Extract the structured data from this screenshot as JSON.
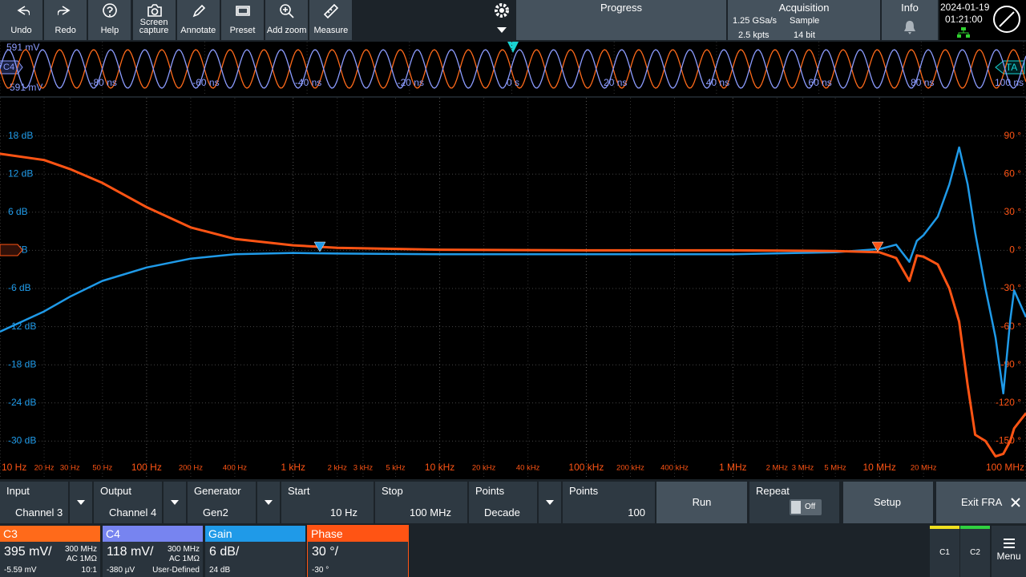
{
  "toolbar": [
    "Undo",
    "Redo",
    "Help",
    "Screen capture",
    "Annotate",
    "Preset",
    "Add zoom",
    "Measure"
  ],
  "status": {
    "progress": "Progress",
    "acquisition": "Acquisition",
    "sample_rate": "1.25 GSa/s",
    "mode": "Sample",
    "record": "2.5 kpts",
    "resolution": "14 bit",
    "info": "Info",
    "date": "2024-01-19",
    "time": "01:21:00"
  },
  "overview": {
    "top_label": "591 mV",
    "bottom_label": "-591 mV",
    "channel": "C4",
    "trigger": "TA",
    "time_labels": [
      "-80 ns",
      "-60 ns",
      "-40 ns",
      "-20 ns",
      "0 s",
      "20 ns",
      "40 ns",
      "60 ns",
      "80 ns",
      "100 ns"
    ]
  },
  "chart_data": {
    "type": "line",
    "x_scale": "log",
    "grid": true,
    "xlim": [
      10,
      100000000
    ],
    "xticks": [
      {
        "value": 10,
        "label": "10 Hz"
      },
      {
        "value": 20,
        "label": "20 Hz"
      },
      {
        "value": 30,
        "label": "30 Hz"
      },
      {
        "value": 50,
        "label": "50 Hz"
      },
      {
        "value": 100,
        "label": "100 Hz"
      },
      {
        "value": 200,
        "label": "200 Hz"
      },
      {
        "value": 400,
        "label": "400 Hz"
      },
      {
        "value": 1000,
        "label": "1 kHz"
      },
      {
        "value": 2000,
        "label": "2 kHz"
      },
      {
        "value": 3000,
        "label": "3 kHz"
      },
      {
        "value": 5000,
        "label": "5 kHz"
      },
      {
        "value": 10000,
        "label": "10 kHz"
      },
      {
        "value": 20000,
        "label": "20 kHz"
      },
      {
        "value": 40000,
        "label": "40 kHz"
      },
      {
        "value": 100000,
        "label": "100 kHz"
      },
      {
        "value": 200000,
        "label": "200 kHz"
      },
      {
        "value": 400000,
        "label": "400 kHz"
      },
      {
        "value": 1000000,
        "label": "1 MHz"
      },
      {
        "value": 2000000,
        "label": "2 MHz"
      },
      {
        "value": 3000000,
        "label": "3 MHz"
      },
      {
        "value": 5000000,
        "label": "5 MHz"
      },
      {
        "value": 10000000,
        "label": "10 MHz"
      },
      {
        "value": 20000000,
        "label": "20 MHz"
      },
      {
        "value": 100000000,
        "label": "100 MHz"
      }
    ],
    "ylim": [
      -36,
      24
    ],
    "yticks": [
      {
        "value": 18,
        "label": "18 dB"
      },
      {
        "value": 12,
        "label": "12 dB"
      },
      {
        "value": 6,
        "label": "6 dB"
      },
      {
        "value": 0,
        "label": "0 dB"
      },
      {
        "value": -6,
        "label": "-6 dB"
      },
      {
        "value": -12,
        "label": "-12 dB"
      },
      {
        "value": -18,
        "label": "-18 dB"
      },
      {
        "value": -24,
        "label": "-24 dB"
      },
      {
        "value": -30,
        "label": "-30 dB"
      }
    ],
    "y2lim": [
      -180,
      120
    ],
    "y2ticks": [
      {
        "value": 90,
        "label": "90 °"
      },
      {
        "value": 60,
        "label": "60 °"
      },
      {
        "value": 30,
        "label": "30 °"
      },
      {
        "value": 0,
        "label": "0 °"
      },
      {
        "value": -30,
        "label": "-30 °"
      },
      {
        "value": -60,
        "label": "-60 °"
      },
      {
        "value": -90,
        "label": "-90 °"
      },
      {
        "value": -120,
        "label": "-120 °"
      },
      {
        "value": -150,
        "label": "-150 °"
      }
    ],
    "x": [
      10,
      20,
      30,
      50,
      100,
      200,
      400,
      1000,
      2000,
      10000,
      100000,
      1000000,
      5000000,
      10000000,
      13000000,
      16000000,
      18000000,
      20000000,
      25000000,
      30000000,
      35000000,
      40000000,
      45000000,
      53000000,
      62000000,
      70000000,
      78000000,
      83000000,
      100000000
    ],
    "series": [
      {
        "name": "Gain",
        "color": "#1f9ae8",
        "axis": "y",
        "values": [
          -12.8,
          -9.6,
          -7.3,
          -4.8,
          -2.7,
          -1.3,
          -0.6,
          -0.4,
          -0.5,
          -0.6,
          -0.6,
          -0.6,
          -0.3,
          0.2,
          0.9,
          -1.8,
          1.5,
          2.4,
          5.3,
          10.4,
          16.2,
          10.4,
          2.8,
          -6.1,
          -13.7,
          -22.5,
          -11,
          -6.3,
          -10.5
        ]
      },
      {
        "name": "Phase",
        "color": "#ff5414",
        "axis": "y2",
        "values": [
          76,
          71,
          64,
          53,
          34,
          18,
          9,
          4,
          2,
          0.5,
          0,
          0,
          -0.5,
          -1.5,
          -6,
          -24,
          -4,
          -5,
          -11,
          -30,
          -56,
          -106,
          -145,
          -150,
          -162,
          -160,
          -150,
          -140,
          -128
        ]
      }
    ]
  },
  "controls": [
    {
      "label": "Input",
      "value": "Channel 3"
    },
    {
      "label": "Output",
      "value": "Channel 4"
    },
    {
      "label": "Generator",
      "value": "Gen2"
    },
    {
      "label": "Start",
      "value": "10 Hz"
    },
    {
      "label": "Stop",
      "value": "100 MHz"
    },
    {
      "label": "Points",
      "value": "Decade"
    },
    {
      "label": "Points",
      "value": "100"
    }
  ],
  "buttons": {
    "run": "Run",
    "repeat": "Repeat",
    "repeat_state": "Off",
    "setup": "Setup",
    "exit": "Exit FRA"
  },
  "channels": [
    {
      "name": "C3",
      "scale": "395 mV/",
      "bandwidth": "300 MHz",
      "coupling": "AC 1MΩ",
      "offset": "-5.59 mV",
      "probe": "10:1"
    },
    {
      "name": "C4",
      "scale": "118 mV/",
      "bandwidth": "300 MHz",
      "coupling": "AC 1MΩ",
      "offset": "-380 µV",
      "probe": "User-Defined"
    }
  ],
  "traces": [
    {
      "scale": "6 dB/",
      "offset": "24 dB"
    },
    {
      "scale": "30 °/",
      "offset": "-30 °"
    }
  ],
  "side": [
    "C1",
    "C2",
    "Menu"
  ]
}
